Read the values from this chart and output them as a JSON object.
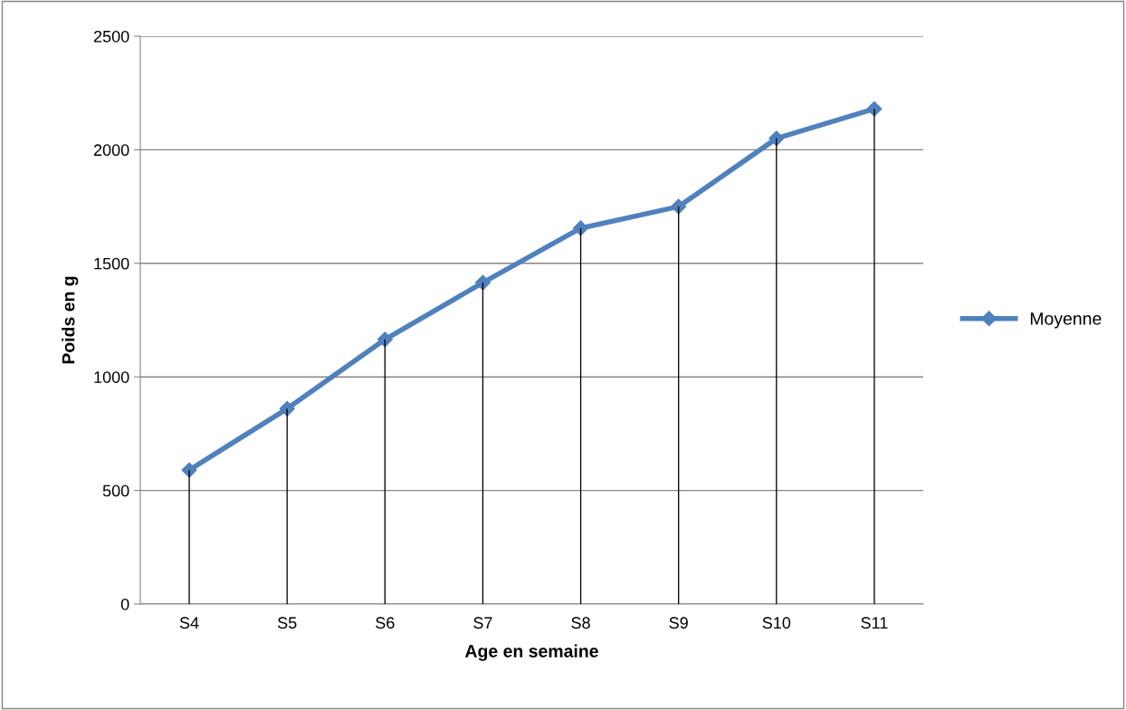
{
  "chart_data": {
    "type": "line",
    "xlabel": "Age en semaine",
    "ylabel": "Poids en g",
    "categories": [
      "S4",
      "S5",
      "S6",
      "S7",
      "S8",
      "S9",
      "S10",
      "S11"
    ],
    "series": [
      {
        "name": "Moyenne",
        "color": "#4f81bd",
        "values": [
          590,
          860,
          1165,
          1415,
          1655,
          1750,
          2050,
          2180
        ],
        "marker": "diamond"
      },
      {
        "type": "bar",
        "color": "#000000",
        "values": [
          590,
          860,
          1165,
          1415,
          1655,
          1750,
          2050,
          2180
        ]
      }
    ],
    "ylim": [
      0,
      2500
    ],
    "yticks": [
      0,
      500,
      1000,
      1500,
      2000,
      2500
    ],
    "grid": "y",
    "legend": "right"
  }
}
